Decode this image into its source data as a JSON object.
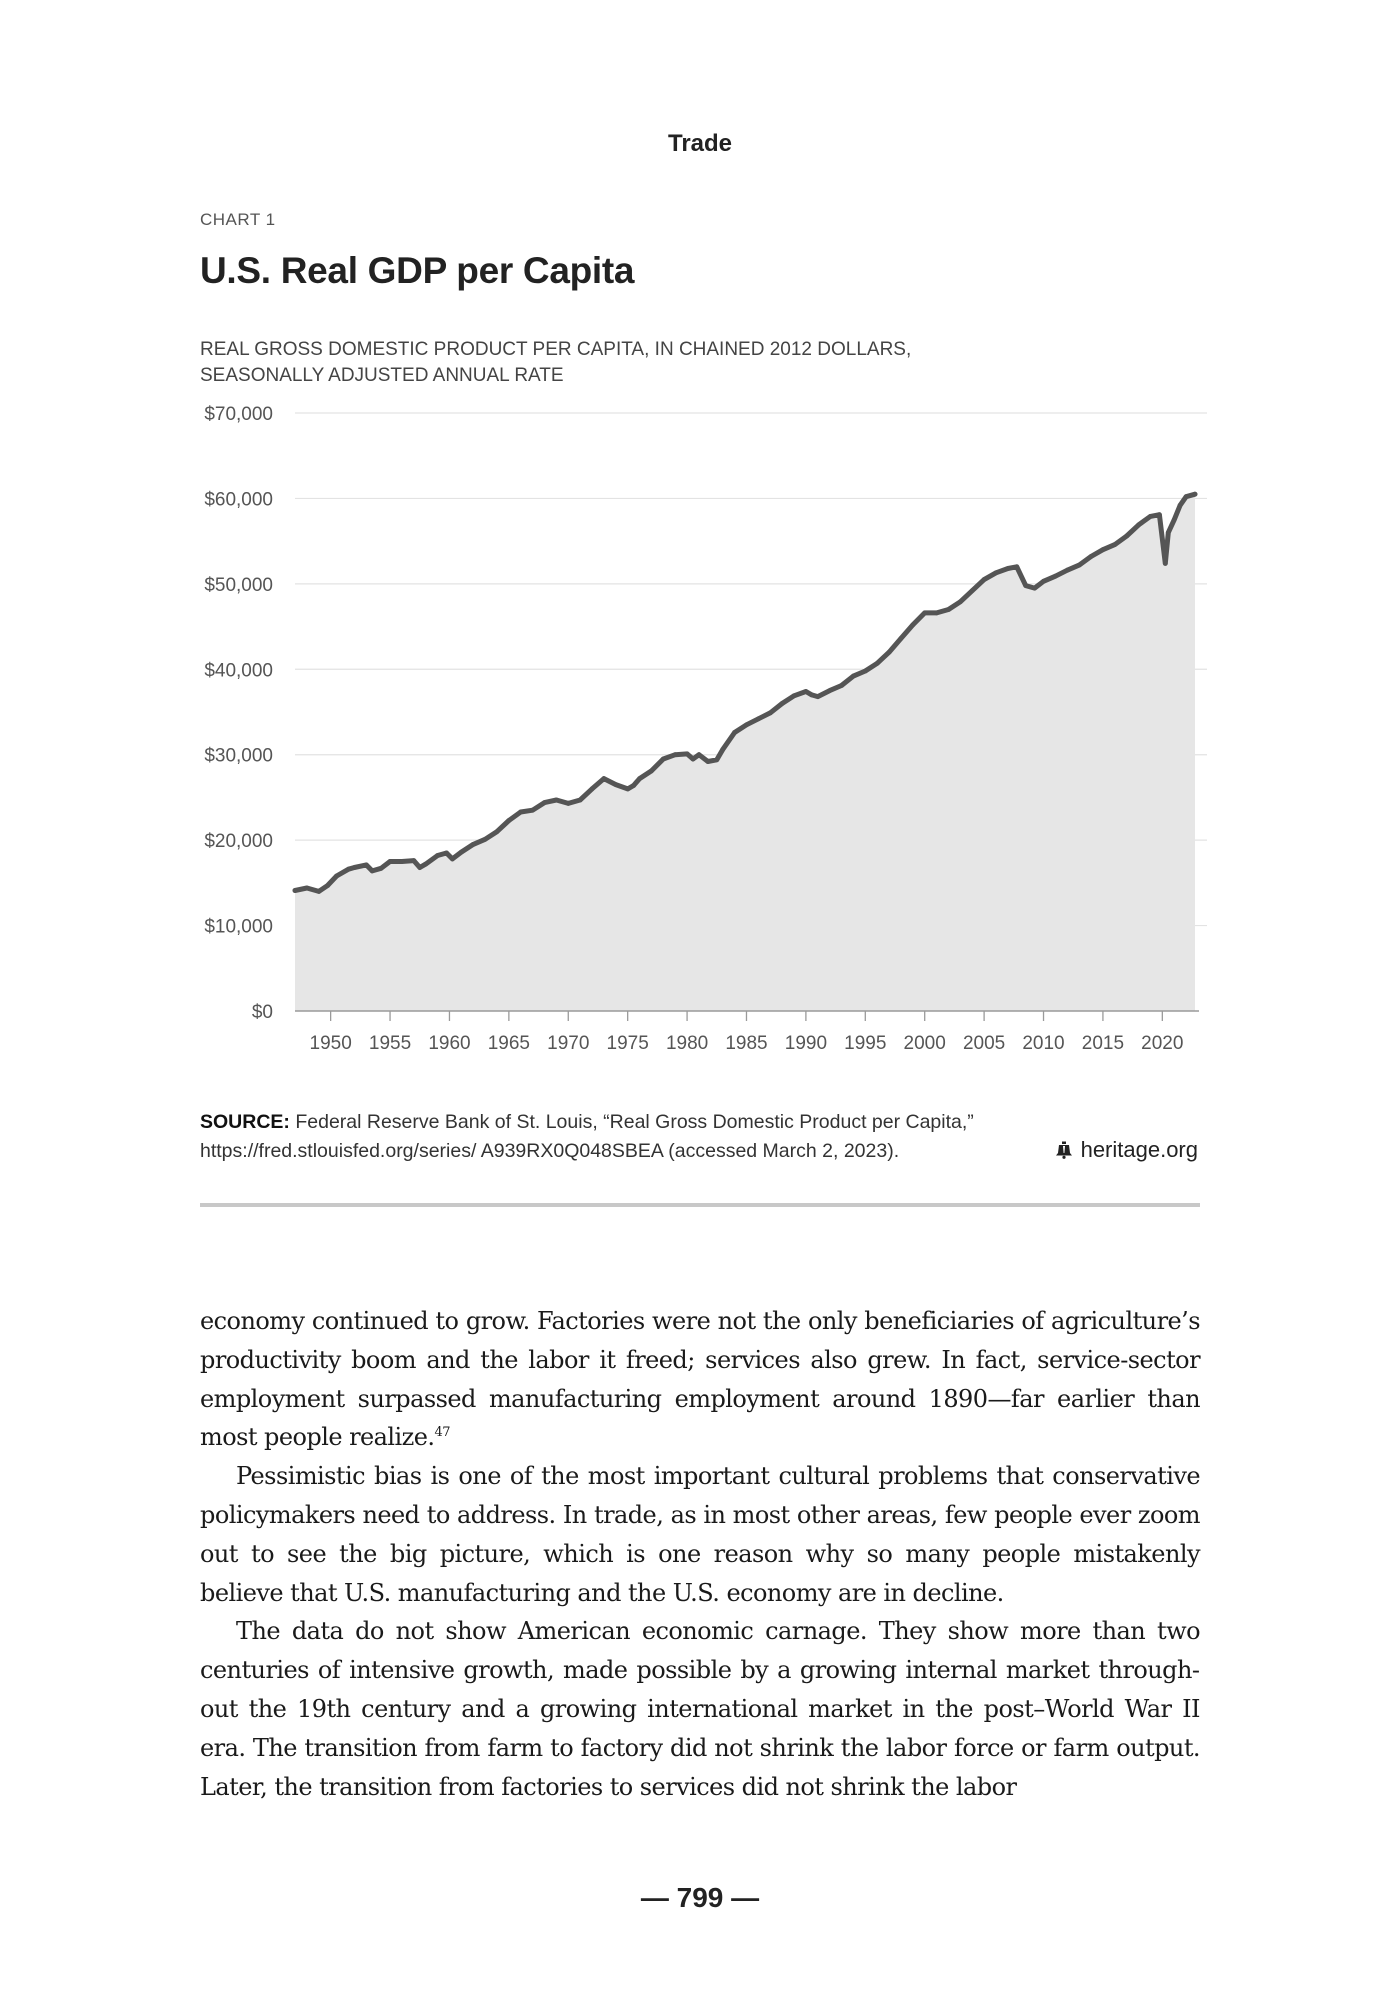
{
  "running_head": "Trade",
  "chart": {
    "label": "CHART 1",
    "title": "U.S. Real GDP per Capita",
    "subtitle_line1": "REAL GROSS DOMESTIC PRODUCT PER CAPITA, IN CHAINED 2012 DOLLARS,",
    "subtitle_line2": "SEASONALLY ADJUSTED ANNUAL RATE",
    "source_label": "SOURCE:",
    "source_line1": "Federal Reserve Bank of St. Louis, “Real Gross Domestic Product per Capita,”",
    "source_line2": "https://fred.stlouisfed.org/series/ A939RX0Q048SBEA (accessed March 2, 2023).",
    "brand": "heritage.org",
    "colors": {
      "line": "#555555",
      "area": "#e6e6e6",
      "grid": "#e3e3e3",
      "axis": "#9a9a9a"
    }
  },
  "chart_data": {
    "type": "area",
    "title": "U.S. Real GDP per Capita",
    "subtitle": "REAL GROSS DOMESTIC PRODUCT PER CAPITA, IN CHAINED 2012 DOLLARS, SEASONALLY ADJUSTED ANNUAL RATE",
    "xlabel": "",
    "ylabel": "",
    "xlim": [
      1947,
      2022.75
    ],
    "ylim": [
      0,
      70000
    ],
    "grid": true,
    "y_ticks": [
      0,
      10000,
      20000,
      30000,
      40000,
      50000,
      60000,
      70000
    ],
    "y_tick_labels": [
      "$0",
      "$10,000",
      "$20,000",
      "$30,000",
      "$40,000",
      "$50,000",
      "$60,000",
      "$70,000"
    ],
    "x_ticks": [
      1950,
      1955,
      1960,
      1965,
      1970,
      1975,
      1980,
      1985,
      1990,
      1995,
      2000,
      2005,
      2010,
      2015,
      2020
    ],
    "x_tick_labels": [
      "1950",
      "1955",
      "1960",
      "1965",
      "1970",
      "1975",
      "1980",
      "1985",
      "1990",
      "1995",
      "2000",
      "2005",
      "2010",
      "2015",
      "2020"
    ],
    "x": [
      1947.0,
      1948.0,
      1949.0,
      1949.75,
      1950.5,
      1951.5,
      1952.0,
      1953.0,
      1953.5,
      1954.25,
      1955.0,
      1956.0,
      1957.0,
      1957.5,
      1958.0,
      1959.0,
      1959.75,
      1960.25,
      1961.0,
      1962.0,
      1963.0,
      1964.0,
      1965.0,
      1966.0,
      1967.0,
      1968.0,
      1969.0,
      1970.0,
      1971.0,
      1972.0,
      1973.0,
      1974.0,
      1975.0,
      1975.5,
      1976.0,
      1977.0,
      1978.0,
      1979.0,
      1980.0,
      1980.5,
      1981.0,
      1981.75,
      1982.5,
      1983.0,
      1984.0,
      1985.0,
      1986.0,
      1987.0,
      1988.0,
      1989.0,
      1990.0,
      1990.5,
      1991.0,
      1992.0,
      1993.0,
      1994.0,
      1995.0,
      1996.0,
      1997.0,
      1998.0,
      1999.0,
      2000.0,
      2001.0,
      2002.0,
      2003.0,
      2004.0,
      2005.0,
      2006.0,
      2007.0,
      2007.75,
      2008.5,
      2009.25,
      2010.0,
      2011.0,
      2012.0,
      2013.0,
      2014.0,
      2015.0,
      2016.0,
      2017.0,
      2018.0,
      2019.0,
      2019.75,
      2020.25,
      2020.5,
      2021.0,
      2021.5,
      2022.0,
      2022.75
    ],
    "series": [
      {
        "values": [
          14100,
          14400,
          14000,
          14700,
          15800,
          16600,
          16800,
          17100,
          16400,
          16700,
          17500,
          17500,
          17600,
          16800,
          17200,
          18200,
          18500,
          17800,
          18600,
          19500,
          20100,
          21000,
          22300,
          23300,
          23500,
          24400,
          24700,
          24300,
          24700,
          26000,
          27200,
          26500,
          26000,
          26400,
          27200,
          28100,
          29500,
          30000,
          30100,
          29500,
          30000,
          29200,
          29400,
          30600,
          32600,
          33500,
          34200,
          34900,
          36000,
          36900,
          37400,
          37000,
          36800,
          37500,
          38100,
          39200,
          39800,
          40700,
          42000,
          43600,
          45200,
          46600,
          46600,
          47000,
          47900,
          49200,
          50500,
          51300,
          51800,
          52000,
          49800,
          49500,
          50300,
          50900,
          51600,
          52200,
          53200,
          54000,
          54600,
          55600,
          56900,
          57900,
          58100,
          52400,
          56000,
          57500,
          59200,
          60200,
          60500
        ]
      }
    ]
  },
  "body": {
    "p1": "economy continued to grow. Factories were not the only beneficiaries of agri­culture’s productivity boom and the labor it freed; services also grew. In fact, service-sector employment surpassed manufacturing employment around 1890—far earlier than most people realize.",
    "p1_note": "47",
    "p2": "Pessimistic bias is one of the most important cultural problems that conserva­tive policymakers need to address. In trade, as in most other areas, few people ever zoom out to see the big picture, which is one reason why so many people mistakenly believe that U.S. manufacturing and the U.S. economy are in decline.",
    "p3": "The data do not show American economic carnage. They show more than two centuries of intensive growth, made possible by a growing internal market through­out the 19th century and a growing international market in the post–World War II era. The transition from farm to factory did not shrink the labor force or farm output. Later, the transition from factories to services did not shrink the labor"
  },
  "folio": "— 799 —"
}
